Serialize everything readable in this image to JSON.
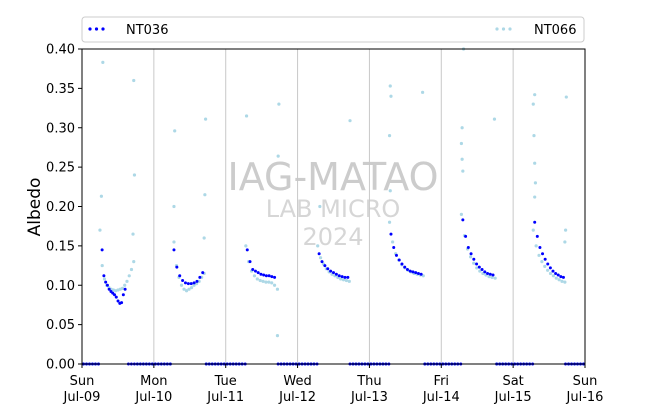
{
  "chart_data": {
    "type": "scatter",
    "ylabel": "Albedo",
    "xlabel": "",
    "ylim": [
      0,
      0.4
    ],
    "yticks": [
      "0.00",
      "0.05",
      "0.10",
      "0.15",
      "0.20",
      "0.25",
      "0.30",
      "0.35",
      "0.40"
    ],
    "xticks": [
      {
        "day": "Sun",
        "date": "Jul-09"
      },
      {
        "day": "Mon",
        "date": "Jul-10"
      },
      {
        "day": "Tue",
        "date": "Jul-11"
      },
      {
        "day": "Wed",
        "date": "Jul-12"
      },
      {
        "day": "Thu",
        "date": "Jul-13"
      },
      {
        "day": "Fri",
        "date": "Jul-14"
      },
      {
        "day": "Sat",
        "date": "Jul-15"
      },
      {
        "day": "Sun",
        "date": "Jul-16"
      }
    ],
    "grid": "vertical lines at midnight",
    "legend_placement": "top, above plot",
    "watermark": [
      "IAG-MATAO",
      "LAB MICRO",
      "2024"
    ],
    "series": [
      {
        "name": "NT036",
        "color": "#0000ff",
        "daily_curves": [
          {
            "day": 0,
            "start": 0.28,
            "end": 0.6,
            "values": [
              0.145,
              0.112,
              0.104,
              0.1,
              0.095,
              0.092,
              0.09,
              0.088,
              0.085,
              0.08,
              0.077,
              0.078,
              0.088,
              0.095
            ]
          },
          {
            "day": 1,
            "start": 0.28,
            "end": 0.68,
            "values": [
              0.145,
              0.123,
              0.112,
              0.106,
              0.103,
              0.102,
              0.102,
              0.103,
              0.105,
              0.11,
              0.116
            ]
          },
          {
            "day": 2,
            "start": 0.3,
            "end": 0.68,
            "values": [
              0.145,
              0.13,
              0.12,
              0.118,
              0.116,
              0.114,
              0.113,
              0.112,
              0.112,
              0.111,
              0.11
            ]
          },
          {
            "day": 3,
            "start": 0.3,
            "end": 0.7,
            "values": [
              0.14,
              0.13,
              0.125,
              0.121,
              0.118,
              0.116,
              0.114,
              0.112,
              0.111,
              0.11,
              0.11
            ]
          },
          {
            "day": 4,
            "start": 0.3,
            "end": 0.72,
            "values": [
              0.165,
              0.148,
              0.138,
              0.132,
              0.127,
              0.123,
              0.12,
              0.118,
              0.117,
              0.116,
              0.115,
              0.114
            ]
          },
          {
            "day": 5,
            "start": 0.3,
            "end": 0.72,
            "values": [
              0.183,
              0.162,
              0.148,
              0.14,
              0.133,
              0.127,
              0.123,
              0.12,
              0.117,
              0.115,
              0.114,
              0.113
            ]
          },
          {
            "day": 6,
            "start": 0.3,
            "end": 0.7,
            "values": [
              0.18,
              0.162,
              0.148,
              0.14,
              0.133,
              0.127,
              0.122,
              0.118,
              0.115,
              0.113,
              0.111,
              0.11
            ]
          }
        ]
      },
      {
        "name": "NT066",
        "color": "#add8e6",
        "daily_curves": [
          {
            "day": 0,
            "start": 0.25,
            "end": 0.72,
            "values": [
              0.17,
              0.125,
              0.108,
              0.1,
              0.097,
              0.095,
              0.094,
              0.093,
              0.094,
              0.095,
              0.096,
              0.1,
              0.105,
              0.112,
              0.12,
              0.13
            ]
          },
          {
            "day": 1,
            "start": 0.28,
            "end": 0.7,
            "values": [
              0.155,
              0.125,
              0.11,
              0.1,
              0.095,
              0.093,
              0.095,
              0.097,
              0.1,
              0.102,
              0.105,
              0.11,
              0.115
            ]
          },
          {
            "day": 2,
            "start": 0.28,
            "end": 0.72,
            "values": [
              0.15,
              0.13,
              0.118,
              0.112,
              0.108,
              0.106,
              0.105,
              0.104,
              0.104,
              0.103,
              0.1,
              0.095
            ]
          },
          {
            "day": 3,
            "start": 0.28,
            "end": 0.72,
            "values": [
              0.15,
              0.135,
              0.127,
              0.121,
              0.117,
              0.114,
              0.112,
              0.11,
              0.108,
              0.107,
              0.106,
              0.105
            ]
          },
          {
            "day": 4,
            "start": 0.28,
            "end": 0.75,
            "values": [
              0.18,
              0.155,
              0.14,
              0.132,
              0.126,
              0.122,
              0.119,
              0.117,
              0.115,
              0.114,
              0.113,
              0.112
            ]
          },
          {
            "day": 5,
            "start": 0.28,
            "end": 0.75,
            "values": [
              0.19,
              0.163,
              0.146,
              0.136,
              0.128,
              0.122,
              0.118,
              0.115,
              0.113,
              0.111,
              0.11,
              0.109
            ]
          },
          {
            "day": 6,
            "start": 0.28,
            "end": 0.72,
            "values": [
              0.17,
              0.15,
              0.138,
              0.13,
              0.124,
              0.119,
              0.115,
              0.112,
              0.109,
              0.107,
              0.105,
              0.104
            ]
          }
        ],
        "outliers": [
          {
            "x": 0.29,
            "y": 0.383
          },
          {
            "x": 0.27,
            "y": 0.213
          },
          {
            "x": 0.72,
            "y": 0.36
          },
          {
            "x": 0.73,
            "y": 0.24
          },
          {
            "x": 0.71,
            "y": 0.165
          },
          {
            "x": 1.29,
            "y": 0.296
          },
          {
            "x": 1.28,
            "y": 0.2
          },
          {
            "x": 1.72,
            "y": 0.311
          },
          {
            "x": 1.71,
            "y": 0.215
          },
          {
            "x": 1.7,
            "y": 0.16
          },
          {
            "x": 2.29,
            "y": 0.315
          },
          {
            "x": 2.74,
            "y": 0.33
          },
          {
            "x": 2.73,
            "y": 0.264
          },
          {
            "x": 2.72,
            "y": 0.036
          },
          {
            "x": 3.31,
            "y": 0.2
          },
          {
            "x": 3.73,
            "y": 0.309
          },
          {
            "x": 4.29,
            "y": 0.353
          },
          {
            "x": 4.3,
            "y": 0.34
          },
          {
            "x": 4.28,
            "y": 0.29
          },
          {
            "x": 4.29,
            "y": 0.22
          },
          {
            "x": 4.74,
            "y": 0.345
          },
          {
            "x": 5.29,
            "y": 0.3
          },
          {
            "x": 5.28,
            "y": 0.28
          },
          {
            "x": 5.29,
            "y": 0.26
          },
          {
            "x": 5.3,
            "y": 0.245
          },
          {
            "x": 5.31,
            "y": 0.4
          },
          {
            "x": 5.74,
            "y": 0.311
          },
          {
            "x": 6.3,
            "y": 0.342
          },
          {
            "x": 6.28,
            "y": 0.33
          },
          {
            "x": 6.29,
            "y": 0.29
          },
          {
            "x": 6.3,
            "y": 0.255
          },
          {
            "x": 6.31,
            "y": 0.23
          },
          {
            "x": 6.3,
            "y": 0.212
          },
          {
            "x": 6.74,
            "y": 0.339
          },
          {
            "x": 6.73,
            "y": 0.17
          },
          {
            "x": 6.72,
            "y": 0.155
          }
        ]
      }
    ]
  }
}
